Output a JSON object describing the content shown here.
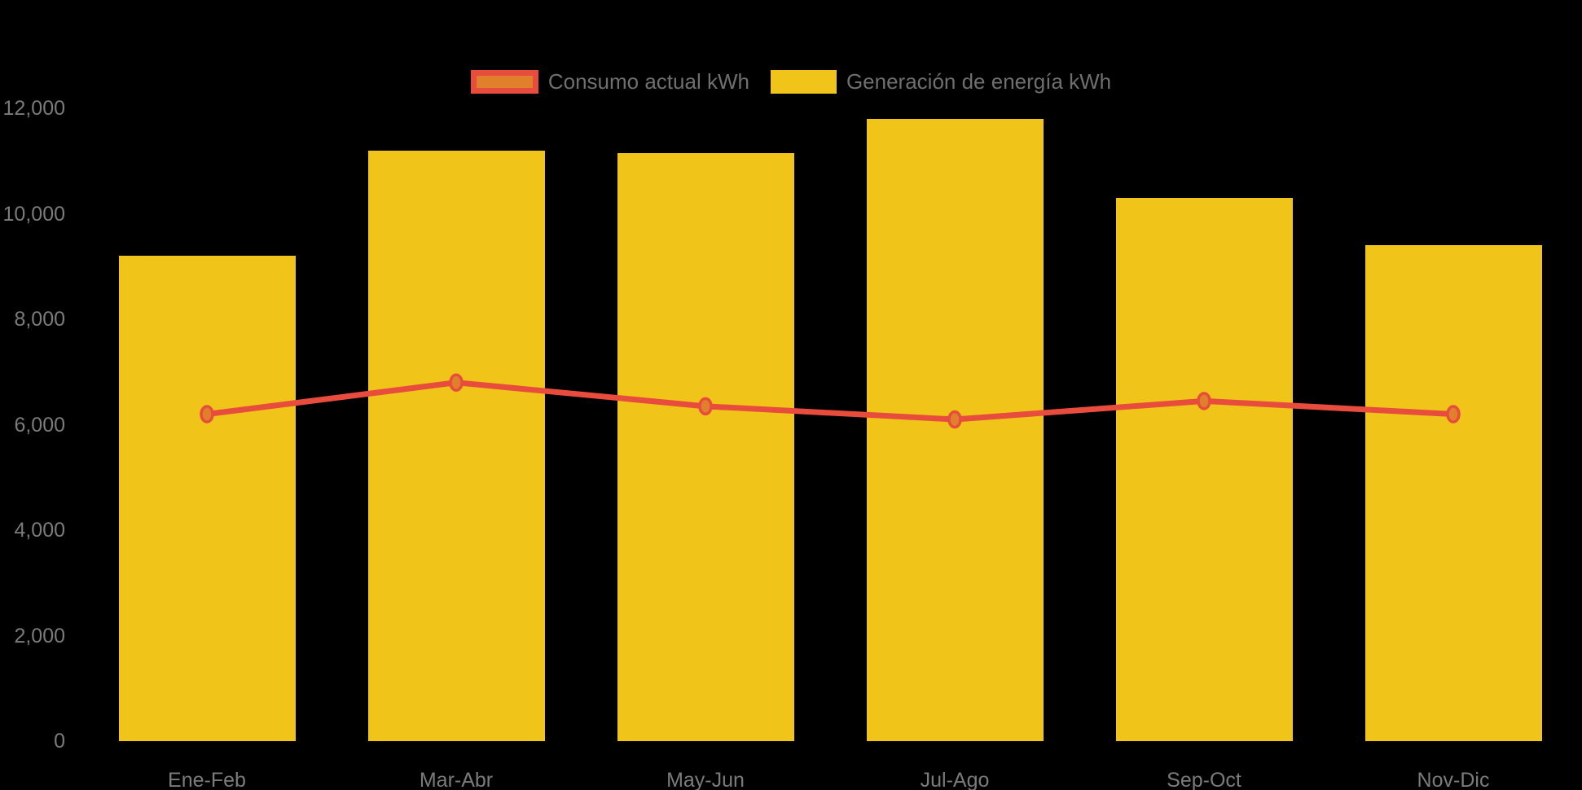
{
  "colors": {
    "background": "#000000",
    "bar_yellow": "#F0C419",
    "line_red": "#E74C3C",
    "point_orange": "#E0802D",
    "axis_text": "#7B7B7B",
    "legend_text": "#6F6F6F"
  },
  "legend": {
    "items": [
      {
        "label": "Consumo actual kWh",
        "type": "line"
      },
      {
        "label": "Generación de energía kWh",
        "type": "bar"
      }
    ]
  },
  "y_axis": {
    "tick_labels": [
      "0",
      "2,000",
      "4,000",
      "6,000",
      "8,000",
      "10,000",
      "12,000"
    ]
  },
  "x_axis": {
    "tick_labels": [
      "Ene-Feb",
      "Mar-Abr",
      "May-Jun",
      "Jul-Ago",
      "Sep-Oct",
      "Nov-Dic"
    ]
  },
  "chart_data": {
    "type": "bar",
    "subtype": "combo-bar-line",
    "title": "",
    "xlabel": "",
    "ylabel": "",
    "categories": [
      "Ene-Feb",
      "Mar-Abr",
      "May-Jun",
      "Jul-Ago",
      "Sep-Oct",
      "Nov-Dic"
    ],
    "series": [
      {
        "name": "Consumo actual kWh",
        "type": "line",
        "values": [
          6200,
          6800,
          6350,
          6100,
          6450,
          6200
        ]
      },
      {
        "name": "Generación de energía kWh",
        "type": "bar",
        "values": [
          9200,
          11200,
          11150,
          11800,
          10300,
          9400
        ]
      }
    ],
    "ylim": [
      0,
      12000
    ],
    "ytick_step": 2000,
    "grid": false,
    "legend_position": "top-center"
  }
}
